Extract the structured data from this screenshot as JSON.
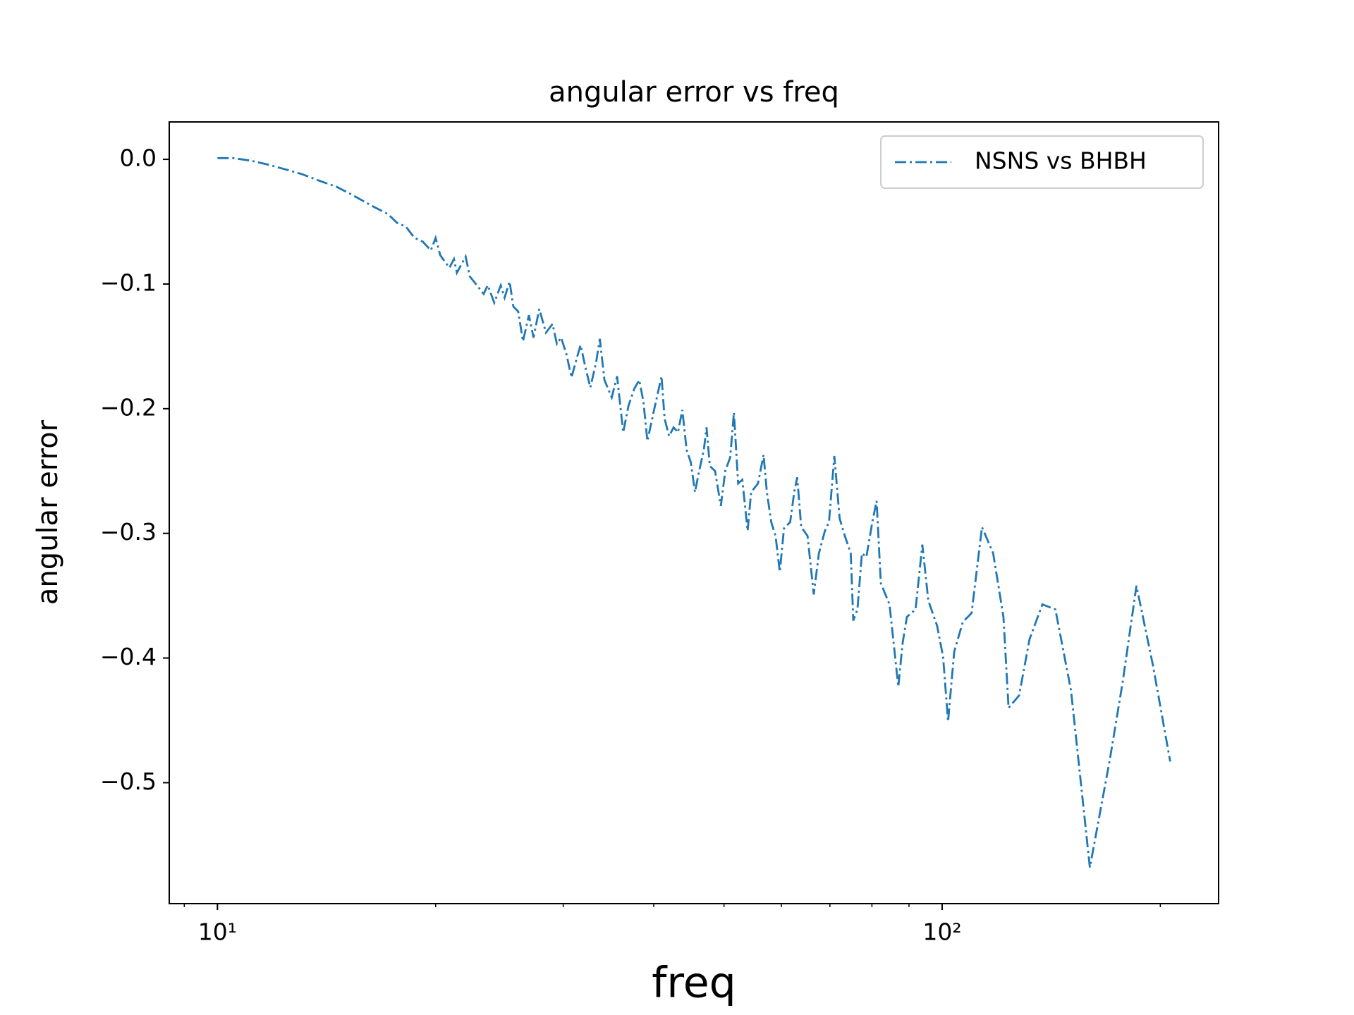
{
  "chart_data": {
    "type": "line",
    "title": "angular error vs freq",
    "x_label": "freq",
    "y_label": "angular error",
    "x_scale": "log",
    "xlim": [
      8.58,
      240.7
    ],
    "ylim": [
      -0.597,
      0.03
    ],
    "xticks": [
      {
        "value": 10,
        "label": "10¹"
      },
      {
        "value": 100,
        "label": "10²"
      }
    ],
    "xminorticks": [
      9,
      20,
      30,
      40,
      50,
      60,
      70,
      80,
      90,
      200
    ],
    "yticks": [
      {
        "value": 0,
        "label": "0.0"
      },
      {
        "value": -0.1,
        "label": "−0.1"
      },
      {
        "value": -0.2,
        "label": "−0.2"
      },
      {
        "value": -0.3,
        "label": "−0.3"
      },
      {
        "value": -0.4,
        "label": "−0.4"
      },
      {
        "value": -0.5,
        "label": "−0.5"
      }
    ],
    "grid": false,
    "legend": "upper right",
    "x": [
      10.0,
      10.5,
      11.1,
      11.7,
      12.4,
      13.1,
      13.8,
      14.6,
      15.4,
      16.3,
      17.2,
      17.7,
      18.2,
      18.7,
      19.2,
      19.7,
      20.0,
      20.3,
      20.9,
      21.2,
      21.4,
      22.0,
      22.3,
      22.8,
      23.3,
      23.6,
      24.1,
      24.6,
      24.9,
      25.3,
      25.6,
      26.0,
      26.4,
      26.9,
      27.3,
      27.8,
      28.4,
      29.0,
      29.4,
      29.8,
      30.3,
      30.8,
      31.3,
      31.7,
      32.2,
      32.7,
      33.3,
      33.7,
      34.2,
      35.0,
      35.6,
      36.3,
      36.9,
      37.6,
      38.2,
      38.7,
      39.2,
      39.9,
      40.5,
      41.0,
      41.4,
      42.0,
      42.6,
      43.2,
      43.8,
      44.4,
      45.0,
      45.6,
      46.2,
      46.9,
      47.3,
      47.8,
      48.6,
      49.5,
      50.2,
      51.0,
      51.6,
      52.3,
      53.0,
      53.9,
      54.5,
      55.7,
      56.7,
      57.3,
      58.1,
      58.9,
      59.7,
      60.5,
      61.7,
      62.5,
      63.1,
      63.9,
      65.2,
      66.5,
      67.6,
      68.9,
      69.8,
      71.0,
      72.2,
      73.4,
      74.8,
      75.4,
      76.4,
      77.5,
      78.6,
      80.1,
      81.2,
      82.3,
      84.6,
      87.0,
      88.2,
      89.4,
      91.9,
      93.9,
      95.7,
      98.4,
      100.3,
      101.9,
      103.9,
      106.8,
      109.8,
      113.5,
      117.6,
      121.5,
      123.5,
      127.7,
      132.0,
      137.5,
      143.3,
      150.6,
      159.9,
      170.3,
      177.5,
      185.4,
      195.4,
      206.4
    ],
    "series": [
      {
        "name": "NSNS vs BHBH",
        "color": "#1f77b4",
        "line_style": "dashdot",
        "values": [
          0.001,
          0.001,
          -0.001,
          -0.004,
          -0.008,
          -0.012,
          -0.017,
          -0.022,
          -0.029,
          -0.037,
          -0.044,
          -0.051,
          -0.054,
          -0.063,
          -0.066,
          -0.073,
          -0.063,
          -0.077,
          -0.087,
          -0.08,
          -0.091,
          -0.078,
          -0.094,
          -0.101,
          -0.108,
          -0.101,
          -0.115,
          -0.101,
          -0.111,
          -0.098,
          -0.118,
          -0.122,
          -0.146,
          -0.125,
          -0.143,
          -0.12,
          -0.139,
          -0.132,
          -0.148,
          -0.143,
          -0.156,
          -0.175,
          -0.16,
          -0.149,
          -0.167,
          -0.183,
          -0.163,
          -0.144,
          -0.177,
          -0.191,
          -0.174,
          -0.219,
          -0.198,
          -0.184,
          -0.177,
          -0.194,
          -0.226,
          -0.205,
          -0.188,
          -0.174,
          -0.208,
          -0.222,
          -0.215,
          -0.219,
          -0.201,
          -0.233,
          -0.243,
          -0.267,
          -0.25,
          -0.233,
          -0.215,
          -0.246,
          -0.25,
          -0.278,
          -0.25,
          -0.239,
          -0.203,
          -0.26,
          -0.257,
          -0.298,
          -0.267,
          -0.26,
          -0.237,
          -0.267,
          -0.291,
          -0.302,
          -0.331,
          -0.296,
          -0.291,
          -0.267,
          -0.255,
          -0.295,
          -0.302,
          -0.349,
          -0.316,
          -0.298,
          -0.291,
          -0.238,
          -0.288,
          -0.302,
          -0.316,
          -0.37,
          -0.361,
          -0.316,
          -0.319,
          -0.291,
          -0.274,
          -0.34,
          -0.357,
          -0.423,
          -0.388,
          -0.367,
          -0.361,
          -0.309,
          -0.354,
          -0.374,
          -0.399,
          -0.451,
          -0.395,
          -0.371,
          -0.364,
          -0.295,
          -0.316,
          -0.367,
          -0.44,
          -0.43,
          -0.385,
          -0.357,
          -0.361,
          -0.426,
          -0.568,
          -0.482,
          -0.419,
          -0.342,
          -0.406,
          -0.483
        ]
      }
    ]
  }
}
